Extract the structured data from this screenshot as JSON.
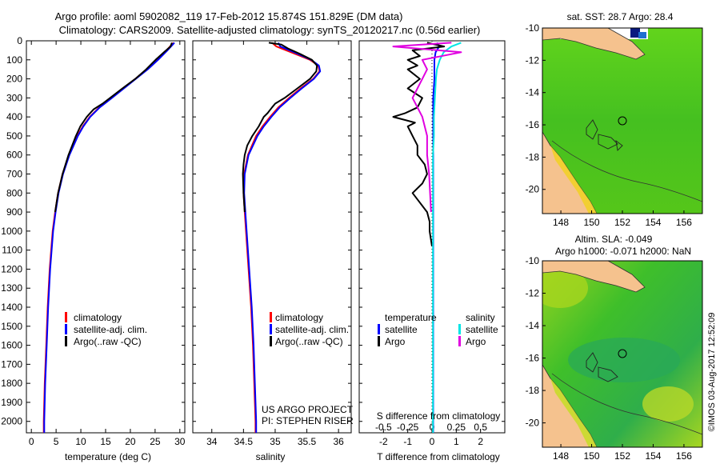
{
  "title": {
    "line1": "Argo profile: aoml 5902082_119 17-Feb-2012 15.874S 151.829E (DM data)",
    "line2": "Climatology: CARS2009. Satellite-adjusted climatology: synTS_20120217.nc (0.56d earlier)"
  },
  "side_label": "©IMOS 03-Aug-2017 12:52:09",
  "credits": {
    "project": "US ARGO PROJECT",
    "pi": "PI: STEPHEN RISER"
  },
  "depth_ticks": [
    "0",
    "100",
    "200",
    "300",
    "400",
    "500",
    "600",
    "700",
    "800",
    "900",
    "1000",
    "1100",
    "1200",
    "1300",
    "1400",
    "1500",
    "1600",
    "1700",
    "1800",
    "1900",
    "2000"
  ],
  "colors": {
    "clim": "#ff0000",
    "sat": "#0000ff",
    "argo": "#000000",
    "sat_s": "#00e5e5",
    "argo_s": "#e000e0",
    "land": "#f5c28e",
    "ocean": "#3fbf1f",
    "coast": "#333333"
  },
  "legends": {
    "temp": [
      "climatology",
      "satellite-adj. clim.",
      "Argo(..raw -QC)"
    ],
    "sal": [
      "climatology",
      "satellite-adj. clim.",
      "Argo(..raw -QC)"
    ],
    "diff": {
      "temperature": "temperature",
      "salinity": "salinity",
      "satellite": "satellite",
      "argo": "Argo"
    }
  },
  "maps": {
    "top_caption": "sat. SST: 28.7 Argo: 28.4",
    "bottom_caption1": "Altim. SLA: -0.049",
    "bottom_caption2": "Argo h1000: -0.071 h2000: NaN",
    "lon_ticks": [
      "148",
      "150",
      "152",
      "154",
      "156"
    ],
    "lat_ticks": [
      "-10",
      "-12",
      "-14",
      "-16",
      "-18",
      "-20"
    ],
    "lon_range": [
      146.8,
      157.2
    ],
    "lat_range": [
      -21.5,
      -10
    ],
    "argo_position": [
      151.829,
      -15.874
    ]
  },
  "chart_data": [
    {
      "type": "line",
      "name": "temperature-profile",
      "xlabel": "temperature (deg C)",
      "ylabel": "",
      "xlim": [
        -1,
        31
      ],
      "ylim": [
        2060,
        0
      ],
      "xticks": [
        "0",
        "5",
        "10",
        "15",
        "20",
        "25",
        "30"
      ],
      "series": [
        {
          "name": "climatology",
          "depth": [
            10,
            50,
            100,
            150,
            200,
            250,
            300,
            350,
            400,
            450,
            500,
            600,
            700,
            800,
            900,
            1000,
            1200,
            1400,
            1600,
            1800,
            2000,
            2060
          ],
          "values": [
            28.7,
            27.3,
            25.5,
            23.3,
            21.0,
            18.6,
            16.2,
            13.7,
            11.8,
            10.4,
            9.3,
            7.6,
            6.3,
            5.4,
            4.8,
            4.3,
            3.7,
            3.3,
            3.0,
            2.7,
            2.5,
            2.5
          ]
        },
        {
          "name": "satellite-adj. clim.",
          "depth": [
            10,
            50,
            100,
            150,
            200,
            250,
            300,
            350,
            400,
            450,
            500,
            600,
            700,
            800,
            900,
            1000,
            1200,
            1400,
            1600,
            1800,
            2000,
            2060
          ],
          "values": [
            28.9,
            27.5,
            25.6,
            23.5,
            21.1,
            18.7,
            16.3,
            13.8,
            11.9,
            10.5,
            9.4,
            7.7,
            6.4,
            5.5,
            4.9,
            4.4,
            3.8,
            3.4,
            3.1,
            2.8,
            2.6,
            2.6
          ]
        },
        {
          "name": "Argo(..raw -QC)",
          "depth": [
            10,
            30,
            60,
            100,
            150,
            200,
            250,
            300,
            330,
            360,
            400,
            450,
            500,
            600,
            700,
            800,
            900
          ],
          "values": [
            28.4,
            28.1,
            26.8,
            25.1,
            23.2,
            21.0,
            18.4,
            15.9,
            14.4,
            12.6,
            11.2,
            9.9,
            9.0,
            7.5,
            6.3,
            5.4,
            4.8
          ]
        }
      ]
    },
    {
      "type": "line",
      "name": "salinity-profile",
      "xlabel": "salinity",
      "xlim": [
        33.7,
        36.2
      ],
      "ylim": [
        2060,
        0
      ],
      "xticks": [
        "34",
        "34.5",
        "35",
        "35.5",
        "36"
      ],
      "series": [
        {
          "name": "climatology",
          "depth": [
            10,
            30,
            60,
            100,
            130,
            160,
            200,
            250,
            300,
            350,
            400,
            450,
            500,
            600,
            700,
            800,
            900,
            1000,
            1200,
            1400,
            1600,
            1800,
            2000,
            2060
          ],
          "values": [
            34.95,
            35.02,
            35.25,
            35.55,
            35.68,
            35.7,
            35.6,
            35.4,
            35.22,
            35.05,
            34.92,
            34.8,
            34.7,
            34.57,
            34.51,
            34.5,
            34.52,
            34.54,
            34.58,
            34.62,
            34.65,
            34.67,
            34.69,
            34.69
          ]
        },
        {
          "name": "satellite-adj. clim.",
          "depth": [
            10,
            30,
            60,
            100,
            130,
            160,
            200,
            250,
            300,
            350,
            400,
            450,
            500,
            600,
            700,
            800,
            900,
            1000,
            1200,
            1400,
            1600,
            1800,
            2000,
            2060
          ],
          "values": [
            35.05,
            35.08,
            35.3,
            35.57,
            35.69,
            35.71,
            35.61,
            35.42,
            35.24,
            35.07,
            34.94,
            34.82,
            34.72,
            34.58,
            34.52,
            34.51,
            34.53,
            34.55,
            34.59,
            34.63,
            34.66,
            34.68,
            34.7,
            34.7
          ]
        },
        {
          "name": "Argo(..raw -QC)",
          "depth": [
            10,
            20,
            40,
            70,
            100,
            130,
            160,
            200,
            250,
            300,
            330,
            350,
            380,
            400,
            450,
            500,
            550,
            600,
            650,
            700,
            800,
            900
          ],
          "values": [
            34.9,
            35.1,
            35.2,
            35.4,
            35.58,
            35.66,
            35.65,
            35.55,
            35.35,
            35.15,
            35.0,
            34.95,
            34.88,
            34.82,
            34.74,
            34.64,
            34.56,
            34.52,
            34.5,
            34.49,
            34.5,
            34.52
          ]
        }
      ]
    },
    {
      "type": "line",
      "name": "difference-profile",
      "xlabel": "T difference from climatology",
      "xlabel2": "S difference from climatology",
      "xlim": [
        -3,
        3
      ],
      "ylim": [
        2060,
        0
      ],
      "xticks": [
        "-2",
        "-1",
        "0",
        "1",
        "2"
      ],
      "xticks2": [
        "-0.5",
        "-0.25",
        "0",
        "0.25",
        "0.5"
      ],
      "series": [
        {
          "name": "temperature satellite",
          "depth": [
            10,
            30,
            60,
            100,
            150,
            200,
            300,
            400,
            500,
            600,
            800,
            1000,
            1200,
            1500,
            1800,
            2060
          ],
          "values": [
            0.2,
            0.3,
            0.15,
            0.1,
            0.1,
            0.1,
            0.05,
            0.05,
            0.05,
            0.05,
            0.05,
            0.05,
            0.05,
            0.05,
            0.05,
            0.05
          ]
        },
        {
          "name": "temperature Argo",
          "depth": [
            10,
            30,
            50,
            80,
            100,
            130,
            150,
            200,
            250,
            300,
            350,
            380,
            400,
            430,
            450,
            500,
            550,
            600,
            650,
            700,
            750,
            800,
            850,
            900,
            950,
            1000,
            1080
          ],
          "values": [
            -0.2,
            0.5,
            -0.8,
            -0.5,
            -1.0,
            -0.6,
            -1.0,
            -0.5,
            -1.0,
            -0.4,
            -0.6,
            -1.1,
            -1.6,
            -0.7,
            -1.0,
            -0.8,
            -0.6,
            -0.6,
            -0.3,
            -0.2,
            -0.4,
            -0.8,
            -0.5,
            -0.2,
            -0.1,
            -0.1,
            0.0
          ]
        },
        {
          "name": "salinity satellite",
          "depth": [
            10,
            30,
            60,
            100,
            150,
            200,
            300,
            400,
            500,
            600,
            800,
            1000,
            1200,
            1500,
            1800,
            2060
          ],
          "values": [
            0.3,
            0.2,
            0.12,
            0.08,
            0.05,
            0.04,
            0.03,
            0.02,
            0.02,
            0.01,
            0.01,
            0.01,
            0.01,
            0.01,
            0.01,
            0.01
          ]
        },
        {
          "name": "salinity Argo",
          "depth": [
            10,
            30,
            60,
            100,
            150,
            200,
            300,
            400,
            500,
            600,
            700,
            800,
            900
          ],
          "values": [
            0.2,
            -0.4,
            0.3,
            -0.1,
            -0.05,
            -0.1,
            -0.2,
            -0.1,
            -0.05,
            -0.05,
            -0.03,
            -0.02,
            -0.01
          ]
        }
      ]
    }
  ]
}
